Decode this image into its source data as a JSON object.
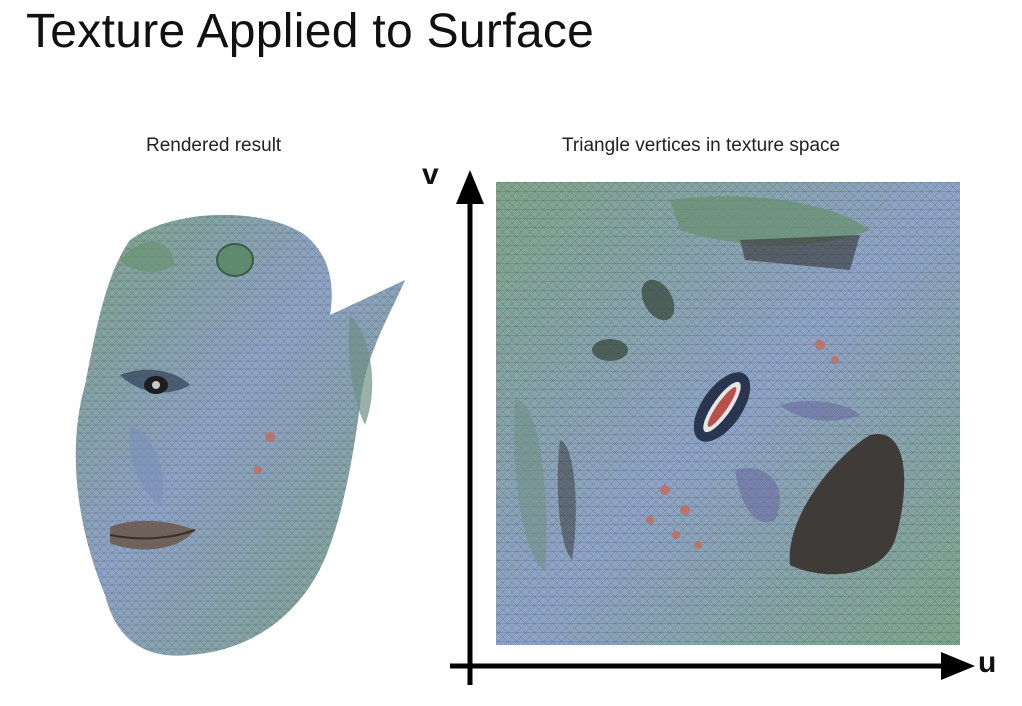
{
  "slide": {
    "title": "Texture Applied to Surface",
    "left_caption": "Rendered result",
    "right_caption": "Triangle vertices in texture space"
  },
  "axes": {
    "u_label": "u",
    "v_label": "v"
  },
  "colors": {
    "mesh_green": "#7fa488",
    "mesh_blue": "#8ea3c8",
    "lips": "#6e625b",
    "dark_patch": "#3f3b38",
    "axis": "#000000"
  }
}
